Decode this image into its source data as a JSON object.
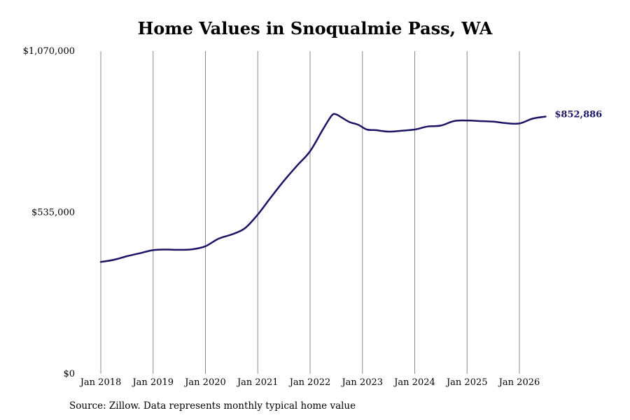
{
  "chart_data": {
    "type": "line",
    "title": "Home Values in Snoqualmie Pass, WA",
    "xlabel": "",
    "ylabel": "",
    "x_tick_labels": [
      "Jan 2018",
      "Jan 2019",
      "Jan 2020",
      "Jan 2021",
      "Jan 2022",
      "Jan 2023",
      "Jan 2024",
      "Jan 2025",
      "Jan 2026"
    ],
    "y_tick_labels": [
      "$1,070,000",
      "$535,000",
      "$0"
    ],
    "ylim": [
      0,
      1070000
    ],
    "xlim": [
      "2017-12",
      "2026-07"
    ],
    "grid": "vertical",
    "legend": "none",
    "line_color": "#1b1464",
    "end_label": "$852,886",
    "series": [
      {
        "values": [
          {
            "x": "2018-01",
            "y": 371000
          },
          {
            "x": "2018-04",
            "y": 378000
          },
          {
            "x": "2018-07",
            "y": 390000
          },
          {
            "x": "2018-10",
            "y": 400000
          },
          {
            "x": "2019-01",
            "y": 410000
          },
          {
            "x": "2019-04",
            "y": 412000
          },
          {
            "x": "2019-07",
            "y": 411000
          },
          {
            "x": "2019-10",
            "y": 413000
          },
          {
            "x": "2020-01",
            "y": 423000
          },
          {
            "x": "2020-04",
            "y": 448000
          },
          {
            "x": "2020-07",
            "y": 462000
          },
          {
            "x": "2020-10",
            "y": 482000
          },
          {
            "x": "2021-01",
            "y": 528000
          },
          {
            "x": "2021-04",
            "y": 585000
          },
          {
            "x": "2021-07",
            "y": 640000
          },
          {
            "x": "2021-10",
            "y": 690000
          },
          {
            "x": "2022-01",
            "y": 738000
          },
          {
            "x": "2022-04",
            "y": 812000
          },
          {
            "x": "2022-06",
            "y": 857000
          },
          {
            "x": "2022-07",
            "y": 860000
          },
          {
            "x": "2022-08",
            "y": 852000
          },
          {
            "x": "2022-10",
            "y": 835000
          },
          {
            "x": "2022-12",
            "y": 826000
          },
          {
            "x": "2023-02",
            "y": 810000
          },
          {
            "x": "2023-04",
            "y": 808000
          },
          {
            "x": "2023-07",
            "y": 803000
          },
          {
            "x": "2023-10",
            "y": 806000
          },
          {
            "x": "2024-01",
            "y": 810000
          },
          {
            "x": "2024-04",
            "y": 820000
          },
          {
            "x": "2024-07",
            "y": 823000
          },
          {
            "x": "2024-10",
            "y": 838000
          },
          {
            "x": "2025-01",
            "y": 840000
          },
          {
            "x": "2025-04",
            "y": 838000
          },
          {
            "x": "2025-07",
            "y": 836000
          },
          {
            "x": "2025-10",
            "y": 831000
          },
          {
            "x": "2026-01",
            "y": 830000
          },
          {
            "x": "2026-04",
            "y": 846000
          },
          {
            "x": "2026-07",
            "y": 852886
          }
        ]
      }
    ]
  },
  "source_note": "Source: Zillow. Data represents monthly typical home value"
}
